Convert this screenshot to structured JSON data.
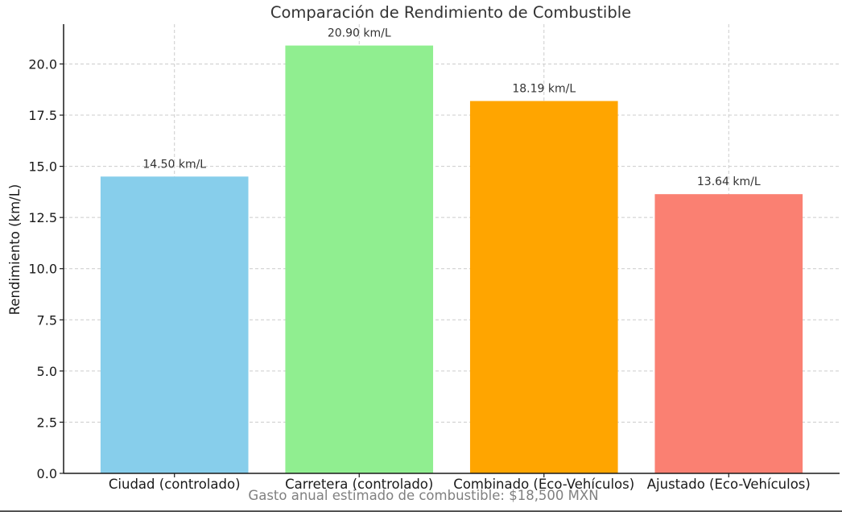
{
  "chart_data": {
    "type": "bar",
    "title": "Comparación de Rendimiento de Combustible",
    "xlabel": "",
    "ylabel": "Rendimiento (km/L)",
    "categories": [
      "Ciudad (controlado)",
      "Carretera (controlado)",
      "Combinado (Eco-Vehículos)",
      "Ajustado (Eco-Vehículos)"
    ],
    "values": [
      14.5,
      20.9,
      18.19,
      13.64
    ],
    "data_labels": [
      "14.50 km/L",
      "20.90 km/L",
      "18.19 km/L",
      "13.64 km/L"
    ],
    "colors": [
      "#87ceeb",
      "#90ee90",
      "#ffa500",
      "#fa8072"
    ],
    "ylim": [
      0,
      21.945
    ],
    "yticks": [
      0.0,
      2.5,
      5.0,
      7.5,
      10.0,
      12.5,
      15.0,
      17.5,
      20.0
    ],
    "ytick_labels": [
      "0.0",
      "2.5",
      "5.0",
      "7.5",
      "10.0",
      "12.5",
      "15.0",
      "17.5",
      "20.0"
    ],
    "grid": true,
    "annotation": "Gasto anual estimado de combustible: $18,500 MXN"
  }
}
